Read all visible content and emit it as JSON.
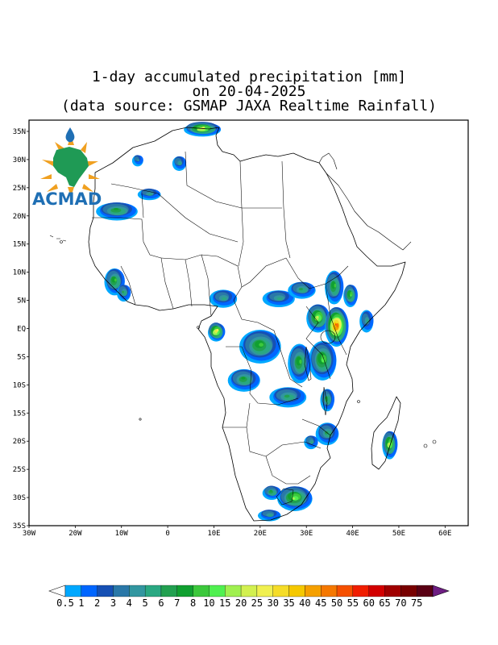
{
  "title": {
    "line1": "1-day accumulated precipitation [mm]",
    "line2": "on 20-04-2025",
    "line3": "(data source: GSMAP JAXA Realtime Rainfall)"
  },
  "logo": {
    "text": "ACMAD"
  },
  "axes": {
    "lon_range": [
      -30,
      65
    ],
    "lat_range": [
      -35,
      37
    ],
    "x_ticks": [
      {
        "value": -30,
        "label": "30W"
      },
      {
        "value": -20,
        "label": "20W"
      },
      {
        "value": -10,
        "label": "10W"
      },
      {
        "value": 0,
        "label": "0"
      },
      {
        "value": 10,
        "label": "10E"
      },
      {
        "value": 20,
        "label": "20E"
      },
      {
        "value": 30,
        "label": "30E"
      },
      {
        "value": 40,
        "label": "40E"
      },
      {
        "value": 50,
        "label": "50E"
      },
      {
        "value": 60,
        "label": "60E"
      }
    ],
    "y_ticks": [
      {
        "value": 35,
        "label": "35N"
      },
      {
        "value": 30,
        "label": "30N"
      },
      {
        "value": 25,
        "label": "25N"
      },
      {
        "value": 20,
        "label": "20N"
      },
      {
        "value": 15,
        "label": "15N"
      },
      {
        "value": 10,
        "label": "10N"
      },
      {
        "value": 5,
        "label": "5N"
      },
      {
        "value": 0,
        "label": "EQ"
      },
      {
        "value": -5,
        "label": "5S"
      },
      {
        "value": -10,
        "label": "10S"
      },
      {
        "value": -15,
        "label": "15S"
      },
      {
        "value": -20,
        "label": "20S"
      },
      {
        "value": -25,
        "label": "25S"
      },
      {
        "value": -30,
        "label": "30S"
      },
      {
        "value": -35,
        "label": "35S"
      }
    ]
  },
  "colorbar": {
    "labels": [
      "0.5",
      "1",
      "2",
      "3",
      "4",
      "5",
      "6",
      "7",
      "8",
      "10",
      "15",
      "20",
      "25",
      "30",
      "35",
      "40",
      "45",
      "50",
      "55",
      "60",
      "65",
      "70",
      "75"
    ],
    "colors": [
      "#00a8ff",
      "#0066ff",
      "#1650b4",
      "#2a78a8",
      "#3296a0",
      "#2aa882",
      "#22a050",
      "#10a030",
      "#3cc83c",
      "#50f050",
      "#a0f050",
      "#d2f050",
      "#f0f050",
      "#f5dc28",
      "#f5c800",
      "#f5a000",
      "#f57800",
      "#f55000",
      "#f01e00",
      "#d20000",
      "#a00000",
      "#780000",
      "#5a0014"
    ],
    "under_color": "#ffffff",
    "over_color": "#6e1e82"
  },
  "rain_zones": [
    {
      "name": "tunisia-algeria-coast",
      "lon": 7.5,
      "lat": 35.5,
      "rx": 4,
      "ry": 1.2,
      "peak": 13
    },
    {
      "name": "morocco-atlas",
      "lon": -6.5,
      "lat": 30.0,
      "rx": 1.2,
      "ry": 1.0,
      "peak": 5
    },
    {
      "name": "algeria-highlands",
      "lon": 2.5,
      "lat": 29.5,
      "rx": 1.5,
      "ry": 1.3,
      "peak": 6
    },
    {
      "name": "sahara-band-west",
      "lon": -11.0,
      "lat": 21.0,
      "rx": 4.5,
      "ry": 1.6,
      "peak": 8
    },
    {
      "name": "sahara-band-central",
      "lon": -4.0,
      "lat": 24.0,
      "rx": 2.5,
      "ry": 1.0,
      "peak": 6
    },
    {
      "name": "guinea-sierra-leone",
      "lon": -11.5,
      "lat": 8.5,
      "rx": 2.2,
      "ry": 2.4,
      "peak": 9
    },
    {
      "name": "liberia-coast",
      "lon": -9.5,
      "lat": 6.5,
      "rx": 1.5,
      "ry": 1.5,
      "peak": 7
    },
    {
      "name": "nigeria-cameroon",
      "lon": 12.0,
      "lat": 5.5,
      "rx": 3.0,
      "ry": 1.6,
      "peak": 6
    },
    {
      "name": "gabon-coast",
      "lon": 10.5,
      "lat": -0.5,
      "rx": 1.8,
      "ry": 1.6,
      "peak": 14
    },
    {
      "name": "congo-basin",
      "lon": 20.0,
      "lat": -3.0,
      "rx": 4.5,
      "ry": 3.0,
      "peak": 9
    },
    {
      "name": "central-african-rep",
      "lon": 24.0,
      "lat": 5.5,
      "rx": 3.5,
      "ry": 1.5,
      "peak": 6
    },
    {
      "name": "uganda",
      "lon": 32.5,
      "lat": 2.0,
      "rx": 2.5,
      "ry": 2.5,
      "peak": 12
    },
    {
      "name": "kenya-highlands",
      "lon": 36.5,
      "lat": 0.5,
      "rx": 2.5,
      "ry": 3.5,
      "peak": 18
    },
    {
      "name": "ethiopia-west",
      "lon": 36.0,
      "lat": 7.5,
      "rx": 2.0,
      "ry": 3.0,
      "peak": 9
    },
    {
      "name": "ethiopia-east",
      "lon": 39.5,
      "lat": 6.0,
      "rx": 1.5,
      "ry": 2.0,
      "peak": 10
    },
    {
      "name": "somalia-south",
      "lon": 43.0,
      "lat": 1.5,
      "rx": 1.5,
      "ry": 2.0,
      "peak": 6
    },
    {
      "name": "tanzania",
      "lon": 33.5,
      "lat": -5.5,
      "rx": 3.0,
      "ry": 3.5,
      "peak": 10
    },
    {
      "name": "angola-north",
      "lon": 16.5,
      "lat": -9.0,
      "rx": 3.5,
      "ry": 2.0,
      "peak": 8
    },
    {
      "name": "zambia",
      "lon": 26.0,
      "lat": -12.0,
      "rx": 4.0,
      "ry": 1.8,
      "peak": 7
    },
    {
      "name": "malawi",
      "lon": 34.5,
      "lat": -12.5,
      "rx": 1.5,
      "ry": 2.0,
      "peak": 8
    },
    {
      "name": "mozambique-central",
      "lon": 34.5,
      "lat": -18.5,
      "rx": 2.5,
      "ry": 2.0,
      "peak": 7
    },
    {
      "name": "zimbabwe-east",
      "lon": 31.0,
      "lat": -20.0,
      "rx": 1.5,
      "ry": 1.2,
      "peak": 6
    },
    {
      "name": "madagascar-east",
      "lon": 48.0,
      "lat": -20.5,
      "rx": 1.6,
      "ry": 2.5,
      "peak": 12
    },
    {
      "name": "south-africa-east",
      "lon": 27.5,
      "lat": -30.0,
      "rx": 3.8,
      "ry": 2.2,
      "peak": 11
    },
    {
      "name": "south-africa-west",
      "lon": 22.5,
      "lat": -29.0,
      "rx": 2.0,
      "ry": 1.2,
      "peak": 8
    },
    {
      "name": "south-africa-cape",
      "lon": 22.0,
      "lat": -33.0,
      "rx": 2.5,
      "ry": 1.0,
      "peak": 6
    },
    {
      "name": "sudan-south",
      "lon": 29.0,
      "lat": 7.0,
      "rx": 3.0,
      "ry": 1.5,
      "peak": 7
    },
    {
      "name": "drc-east",
      "lon": 28.5,
      "lat": -6.0,
      "rx": 2.5,
      "ry": 3.5,
      "peak": 9
    }
  ]
}
